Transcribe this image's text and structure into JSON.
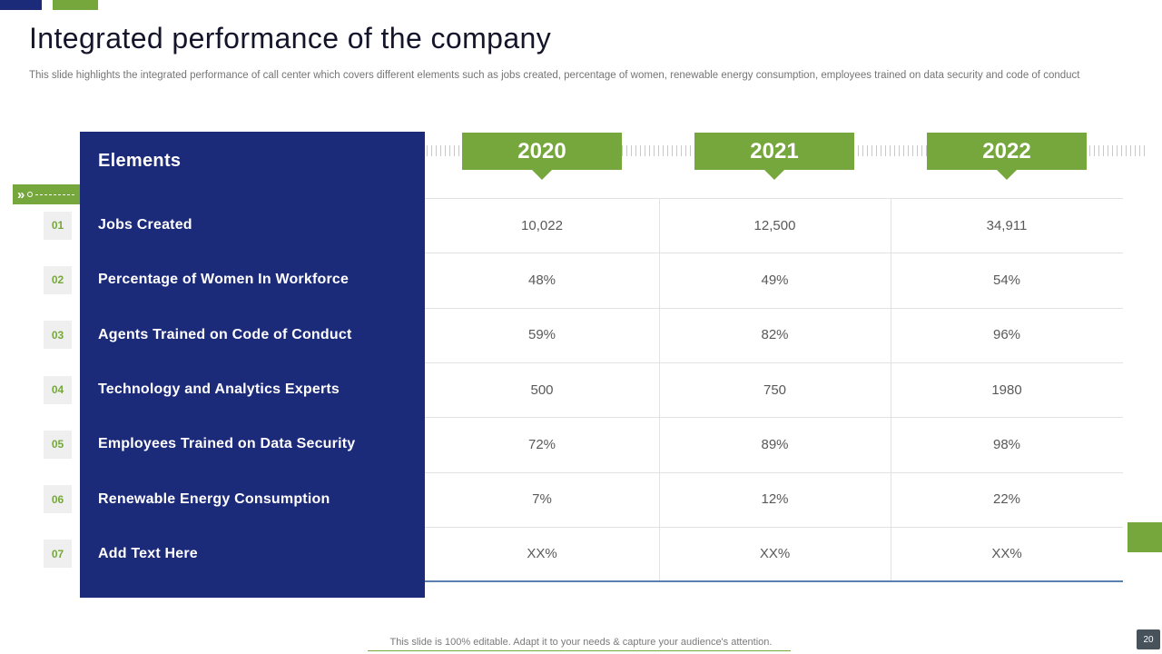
{
  "slide": {
    "title": "Integrated performance of the company",
    "subtitle": "This slide highlights the integrated performance of call center which covers different elements such as jobs created, percentage of women, renewable energy consumption, employees trained on data security and code of conduct",
    "footer": "This slide is 100% editable. Adapt it to your needs & capture your audience's attention.",
    "page_number": "20"
  },
  "icons": {
    "chevron_marker": "»"
  },
  "table": {
    "elements_header": "Elements",
    "years": [
      "2020",
      "2021",
      "2022"
    ],
    "rows": [
      {
        "num": "01",
        "label": "Jobs Created",
        "values": [
          "10,022",
          "12,500",
          "34,911"
        ]
      },
      {
        "num": "02",
        "label": "Percentage of Women In Workforce",
        "values": [
          "48%",
          "49%",
          "54%"
        ]
      },
      {
        "num": "03",
        "label": "Agents Trained on Code of Conduct",
        "values": [
          "59%",
          "82%",
          "96%"
        ]
      },
      {
        "num": "04",
        "label": "Technology and Analytics Experts",
        "values": [
          "500",
          "750",
          "1980"
        ]
      },
      {
        "num": "05",
        "label": "Employees Trained on Data Security",
        "values": [
          "72%",
          "89%",
          "98%"
        ]
      },
      {
        "num": "06",
        "label": "Renewable Energy Consumption",
        "values": [
          "7%",
          "12%",
          "22%"
        ]
      },
      {
        "num": "07",
        "label": "Add Text Here",
        "values": [
          "XX%",
          "XX%",
          "XX%"
        ]
      }
    ]
  },
  "colors": {
    "navy": "#1c2a7a",
    "green": "#76a73d",
    "value_text": "#595959",
    "bottom_rule_blue": "#5b7fae"
  }
}
